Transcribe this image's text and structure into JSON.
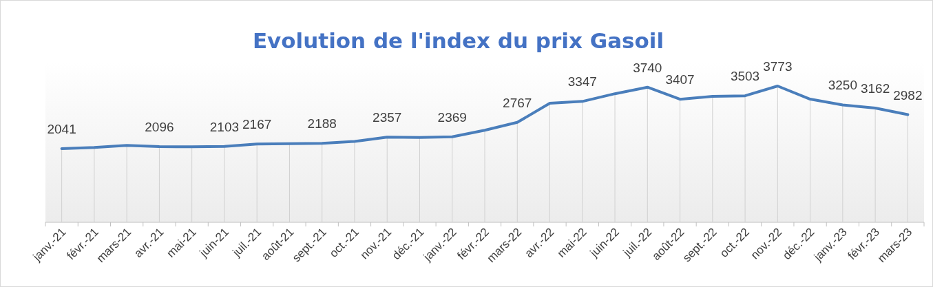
{
  "chart_data": {
    "type": "line",
    "title": "Evolution de l'index du prix Gasoil",
    "categories": [
      "janv.-21",
      "févr.-21",
      "mars-21",
      "avr.-21",
      "mai-21",
      "juin-21",
      "juil.-21",
      "août-21",
      "sept.-21",
      "oct.-21",
      "nov.-21",
      "déc.-21",
      "janv.-22",
      "févr.-22",
      "mars-22",
      "avr.-22",
      "mai-22",
      "juin-22",
      "juil.-22",
      "août-22",
      "sept.-22",
      "oct.-22",
      "nov.-22",
      "déc.-22",
      "janv.-23",
      "févr.-23",
      "mars-23"
    ],
    "series": [
      {
        "color": "#4a7ebb",
        "values": [
          2041,
          2070,
          2130,
          2096,
          2090,
          2103,
          2167,
          2175,
          2188,
          2240,
          2357,
          2350,
          2369,
          2550,
          2767,
          3295,
          3347,
          3560,
          3740,
          3407,
          3485,
          3503,
          3773,
          3410,
          3250,
          3162,
          2982
        ],
        "value_labels": [
          "2041",
          null,
          null,
          "2096",
          null,
          "2103",
          "2167",
          null,
          "2188",
          null,
          "2357",
          null,
          "2369",
          null,
          "2767",
          null,
          "3347",
          null,
          "3740",
          "3407",
          null,
          "3503",
          "3773",
          null,
          "3250",
          "3162",
          "2982"
        ]
      }
    ],
    "marker": "none",
    "line_style": "solid",
    "grid": "x"
  }
}
